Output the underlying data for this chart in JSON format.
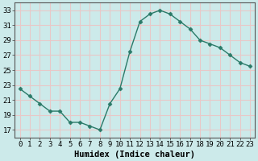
{
  "x": [
    0,
    1,
    2,
    3,
    4,
    5,
    6,
    7,
    8,
    9,
    10,
    11,
    12,
    13,
    14,
    15,
    16,
    17,
    18,
    19,
    20,
    21,
    22,
    23
  ],
  "y": [
    22.5,
    21.5,
    20.5,
    19.5,
    19.5,
    18.0,
    18.0,
    17.5,
    17.0,
    20.5,
    22.5,
    27.5,
    31.5,
    32.5,
    33.0,
    32.5,
    31.5,
    30.5,
    29.0,
    28.5,
    28.0,
    27.0,
    26.0,
    25.5
  ],
  "xlim": [
    -0.5,
    23.5
  ],
  "ylim": [
    16.0,
    34.0
  ],
  "yticks": [
    17,
    19,
    21,
    23,
    25,
    27,
    29,
    31,
    33
  ],
  "xticks": [
    0,
    1,
    2,
    3,
    4,
    5,
    6,
    7,
    8,
    9,
    10,
    11,
    12,
    13,
    14,
    15,
    16,
    17,
    18,
    19,
    20,
    21,
    22,
    23
  ],
  "xlabel": "Humidex (Indice chaleur)",
  "line_color": "#2a7a68",
  "marker": "D",
  "marker_size": 2.5,
  "bg_color": "#cceaea",
  "grid_color": "#e8c8c8",
  "tick_fontsize": 6.5,
  "label_fontsize": 7.5
}
